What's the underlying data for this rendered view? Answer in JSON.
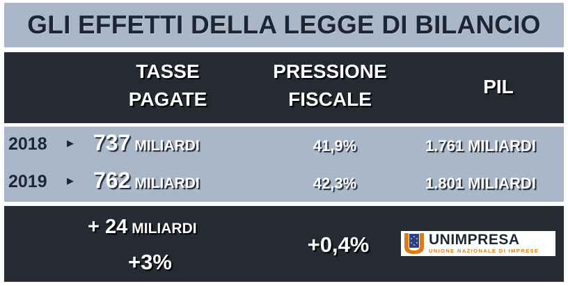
{
  "title": "GLI EFFETTI DELLA LEGGE DI BILANCIO",
  "headers": {
    "tasse": [
      "TASSE",
      "PAGATE"
    ],
    "pressione": [
      "PRESSIONE",
      "FISCALE"
    ],
    "pil": "PIL"
  },
  "rows": [
    {
      "year": "2018",
      "tasse_value": "737",
      "tasse_unit": "MILIARDI",
      "pressione": "41,9%",
      "pil": "1.761 MILIARDI"
    },
    {
      "year": "2019",
      "tasse_value": "762",
      "tasse_unit": "MILIARDI",
      "pressione": "42,3%",
      "pil": "1.801 MILIARDI"
    }
  ],
  "delta": {
    "tasse_value": "+ 24",
    "tasse_unit": "MILIARDI",
    "tasse_pct": "+3%",
    "pressione": "+0,4%"
  },
  "logo": {
    "name": "UNIMPRESA",
    "tagline": "UNIONE NAZIONALE DI IMPRESE"
  },
  "colors": {
    "light_band": "#aab7c8",
    "dark_band": "#252a33",
    "logo_orange": "#e07a10",
    "logo_blue": "#2a3f8f"
  }
}
